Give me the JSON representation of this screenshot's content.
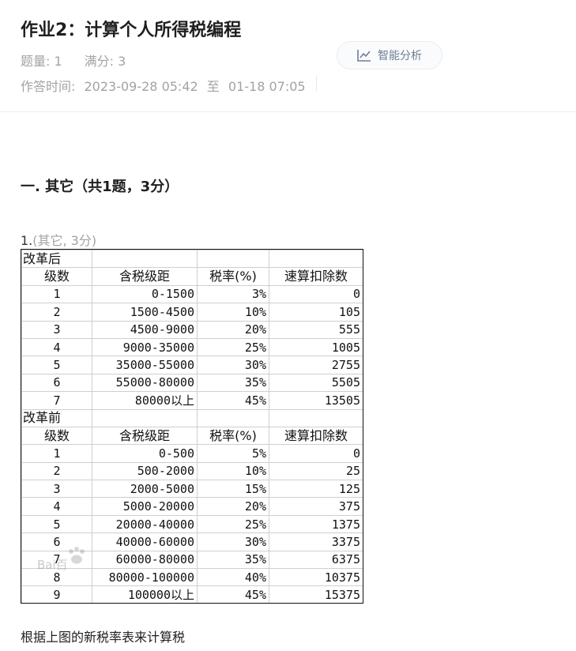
{
  "header": {
    "title": "作业2：计算个人所得税编程",
    "count_label": "题量: 1",
    "score_label": "满分: 3",
    "time_label": "作答时间:",
    "time_start": "2023-09-28 05:42",
    "time_sep": "至",
    "time_end": "01-18 07:05",
    "ai_button_label": "智能分析",
    "ai_icon": "line-chart-icon"
  },
  "section": {
    "title": "一. 其它（共1题，3分）"
  },
  "question": {
    "number": "1.",
    "type_score": "(其它, 3分)",
    "prompt": "根据上图的新税率表来计算税"
  },
  "tax_table": {
    "after_label": "改革后",
    "before_label": "改革前",
    "columns": [
      "级数",
      "含税级距",
      "税率(%)",
      "速算扣除数"
    ],
    "after_rows": [
      [
        "1",
        "0-1500",
        "3%",
        "0"
      ],
      [
        "2",
        "1500-4500",
        "10%",
        "105"
      ],
      [
        "3",
        "4500-9000",
        "20%",
        "555"
      ],
      [
        "4",
        "9000-35000",
        "25%",
        "1005"
      ],
      [
        "5",
        "35000-55000",
        "30%",
        "2755"
      ],
      [
        "6",
        "55000-80000",
        "35%",
        "5505"
      ],
      [
        "7",
        "80000以上",
        "45%",
        "13505"
      ]
    ],
    "before_rows": [
      [
        "1",
        "0-500",
        "5%",
        "0"
      ],
      [
        "2",
        "500-2000",
        "10%",
        "25"
      ],
      [
        "3",
        "2000-5000",
        "15%",
        "125"
      ],
      [
        "4",
        "5000-20000",
        "20%",
        "375"
      ],
      [
        "5",
        "20000-40000",
        "25%",
        "1375"
      ],
      [
        "6",
        "40000-60000",
        "30%",
        "3375"
      ],
      [
        "7",
        "60000-80000",
        "35%",
        "6375"
      ],
      [
        "8",
        "80000-100000",
        "40%",
        "10375"
      ],
      [
        "9",
        "100000以上",
        "45%",
        "15375"
      ]
    ],
    "watermark": "Bai百"
  }
}
